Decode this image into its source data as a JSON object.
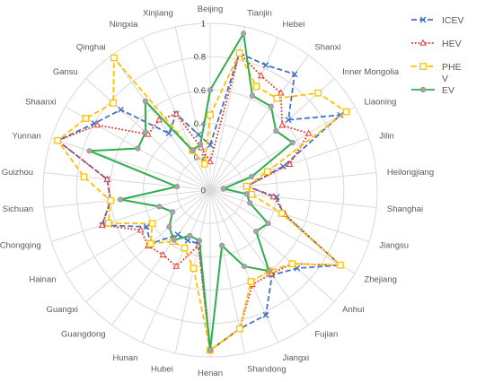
{
  "chart_data": {
    "type": "radar",
    "categories": [
      "Beijing",
      "Tianjin",
      "Hebei",
      "Shanxi",
      "Inner Mongolia",
      "Liaoning",
      "Jilin",
      "Heilongjiang",
      "Shanghai",
      "Jiangsu",
      "Zhejiang",
      "Anhui",
      "Fujian",
      "Jiangxi",
      "Shandong",
      "Henan",
      "Hubei",
      "Hunan",
      "Guangdong",
      "Guangxi",
      "Hainan",
      "Chongqing",
      "Sichuan",
      "Guizhou",
      "Yunnan",
      "Shaanxi",
      "Gansu",
      "Qinghai",
      "Ningxia",
      "Xinjiang"
    ],
    "rlim": [
      0,
      1
    ],
    "ticks": [
      "0",
      "0.2",
      "0.4",
      "0.6",
      "0.8",
      "1"
    ],
    "grid": true,
    "legend_position": "right",
    "series": [
      {
        "name": "ICEV",
        "color": "#4472C4",
        "style": "dashed",
        "marker": "x",
        "values": [
          0.27,
          0.84,
          0.82,
          0.86,
          0.63,
          0.9,
          0.46,
          0.22,
          0.4,
          0.46,
          0.9,
          0.7,
          0.63,
          0.82,
          0.85,
          0.96,
          0.33,
          0.33,
          0.33,
          0.48,
          0.44,
          0.68,
          0.6,
          0.62,
          0.96,
          0.8,
          0.72,
          0.42,
          0.5,
          0.34
        ]
      },
      {
        "name": "HEV",
        "color": "#E03C31",
        "style": "dotted",
        "marker": "triangle",
        "values": [
          0.17,
          0.84,
          0.75,
          0.72,
          0.58,
          0.68,
          0.5,
          0.22,
          0.38,
          0.47,
          0.9,
          0.66,
          0.62,
          0.62,
          0.85,
          0.96,
          0.34,
          0.5,
          0.48,
          0.5,
          0.48,
          0.68,
          0.6,
          0.62,
          0.96,
          0.78,
          0.5,
          0.52,
          0.5,
          0.26
        ]
      },
      {
        "name": "PHEV",
        "color": "#FFC000",
        "style": "dashed",
        "marker": "square",
        "values": [
          0.45,
          0.84,
          0.68,
          0.68,
          0.87,
          0.94,
          0.36,
          0.22,
          0.25,
          0.45,
          0.9,
          0.66,
          0.6,
          0.6,
          0.85,
          0.96,
          0.48,
          0.38,
          0.38,
          0.48,
          0.4,
          0.64,
          0.6,
          0.76,
          0.96,
          0.86,
          0.78,
          0.98,
          0.26,
          0.16
        ]
      },
      {
        "name": "EV",
        "color": "#2EAE4E",
        "style": "solid",
        "marker": "circle",
        "values": [
          0.6,
          0.96,
          0.62,
          0.62,
          0.53,
          0.57,
          0.26,
          0.08,
          0.22,
          0.25,
          0.4,
          0.37,
          0.6,
          0.5,
          0.34,
          0.96,
          0.31,
          0.3,
          0.37,
          0.33,
          0.26,
          0.32,
          0.54,
          0.2,
          0.76,
          0.5,
          0.52,
          0.66,
          0.26,
          0.28
        ]
      }
    ],
    "legend_entries": [
      {
        "key": "ICEV",
        "lines": [
          "ICEV"
        ]
      },
      {
        "key": "HEV",
        "lines": [
          "HEV"
        ]
      },
      {
        "key": "PHEV",
        "lines": [
          "PHE",
          "V"
        ]
      },
      {
        "key": "EV",
        "lines": [
          "EV"
        ]
      }
    ]
  }
}
